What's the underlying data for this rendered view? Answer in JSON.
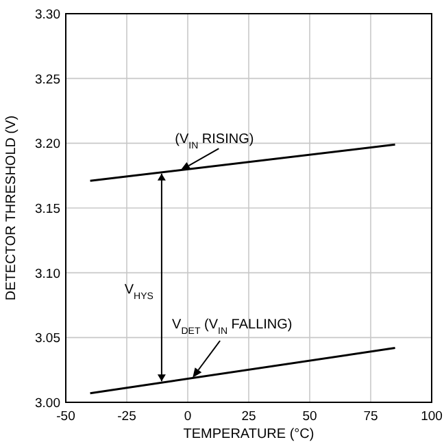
{
  "chart_data": {
    "type": "line",
    "xlabel": "TEMPERATURE (°C)",
    "ylabel": "DETECTOR THRESHOLD (V)",
    "x": [
      -40,
      85
    ],
    "series": [
      {
        "color": "#000000",
        "values": [
          3.171,
          3.199
        ]
      },
      {
        "color": "#000000",
        "values": [
          3.007,
          3.042
        ]
      }
    ],
    "xlim": [
      -50,
      100
    ],
    "xticks": [
      -50,
      -25,
      0,
      25,
      50,
      75,
      100
    ],
    "ylim": [
      3.0,
      3.3
    ],
    "yticks": [
      {
        "value": 3.0,
        "label": "3.00"
      },
      {
        "value": 3.05,
        "label": "3.05"
      },
      {
        "value": 3.1,
        "label": "3.10"
      },
      {
        "value": 3.15,
        "label": "3.15"
      },
      {
        "value": 3.2,
        "label": "3.20"
      },
      {
        "value": 3.25,
        "label": "3.25"
      },
      {
        "value": 3.3,
        "label": "3.30"
      }
    ],
    "grid": true,
    "marker": "none",
    "line_style": "solid",
    "annotations": [
      {
        "text": "(V$_{IN}$ RISING)",
        "x": -3,
        "y": 3.179
      },
      "V$_{HYS}$",
      {
        "text": "V$_{DET}$ (V$_{IN}$ FALLING)",
        "x": 2,
        "y": 3.019
      }
    ]
  }
}
